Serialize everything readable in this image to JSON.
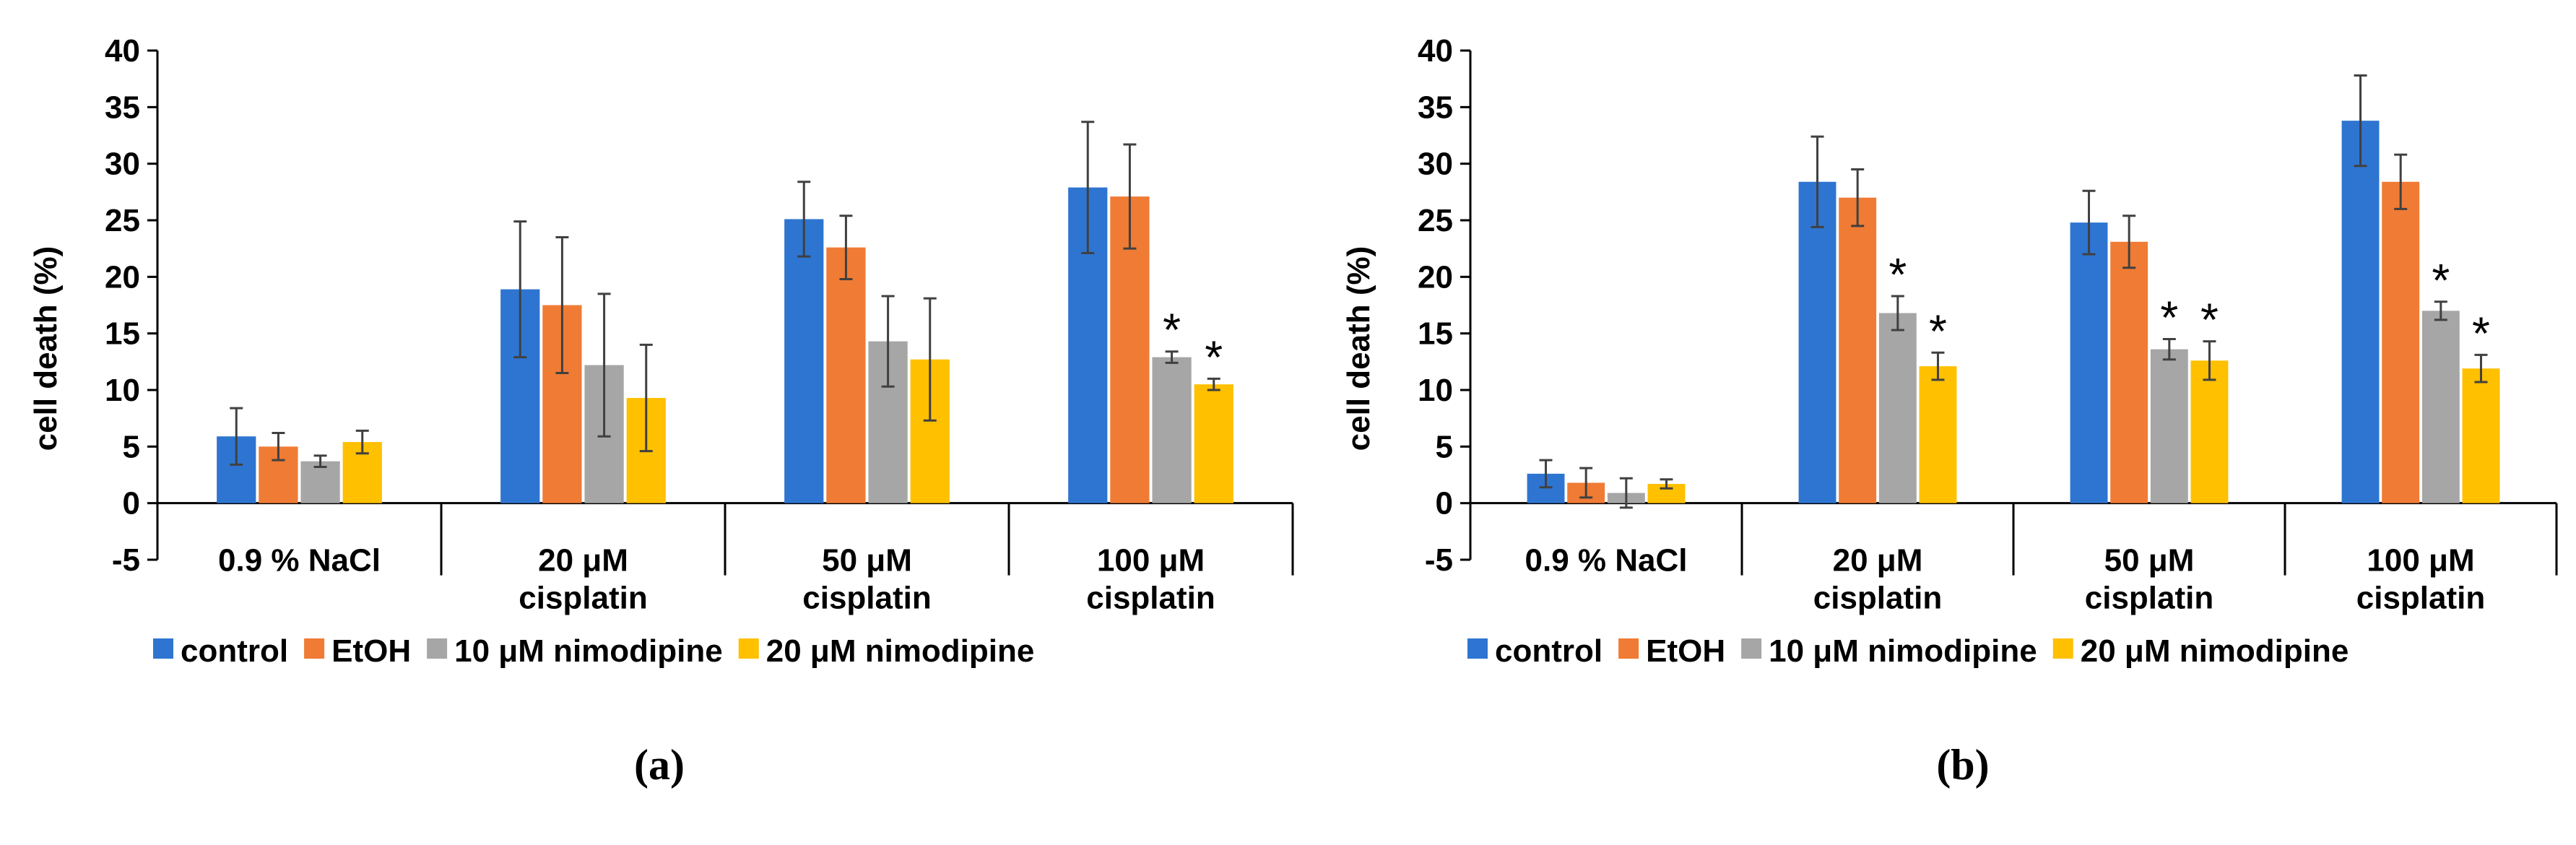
{
  "colors": {
    "control": "#2E75D1",
    "EtOH": "#F07B34",
    "nimo10": "#A6A6A6",
    "nimo20": "#FFC000"
  },
  "chart_data": [
    {
      "type": "bar",
      "panel_label": "(a)",
      "ylabel": "cell death (%)",
      "ylim": [
        -5,
        40
      ],
      "yticks": [
        "-5",
        "0",
        "5",
        "10",
        "15",
        "20",
        "25",
        "30",
        "35",
        "40"
      ],
      "categories": [
        [
          "0.9 % NaCl"
        ],
        [
          "20 μM",
          "cisplatin"
        ],
        [
          "50 μM",
          "cisplatin"
        ],
        [
          "100 μM",
          "cisplatin"
        ]
      ],
      "series": [
        {
          "name": "control",
          "values": [
            5.9,
            18.9,
            25.1,
            27.9
          ],
          "errors": [
            2.5,
            6.0,
            3.3,
            5.8
          ],
          "significant": [
            false,
            false,
            false,
            false
          ]
        },
        {
          "name": "EtOH",
          "values": [
            5.0,
            17.5,
            22.6,
            27.1
          ],
          "errors": [
            1.2,
            6.0,
            2.8,
            4.6
          ],
          "significant": [
            false,
            false,
            false,
            false
          ]
        },
        {
          "name": "10 μM nimodipine",
          "values": [
            3.7,
            12.2,
            14.3,
            12.9
          ],
          "errors": [
            0.5,
            6.3,
            4.0,
            0.5
          ],
          "significant": [
            false,
            false,
            false,
            true
          ]
        },
        {
          "name": "20 μM nimodipine",
          "values": [
            5.4,
            9.3,
            12.7,
            10.5
          ],
          "errors": [
            1.0,
            4.7,
            5.4,
            0.5
          ],
          "significant": [
            false,
            false,
            false,
            true
          ]
        }
      ],
      "legend": [
        "control",
        "EtOH",
        "10 μM nimodipine",
        "20 μM nimodipine"
      ],
      "significance_marker": "*"
    },
    {
      "type": "bar",
      "panel_label": "(b)",
      "ylabel": "cell death (%)",
      "ylim": [
        -5,
        40
      ],
      "yticks": [
        "-5",
        "0",
        "5",
        "10",
        "15",
        "20",
        "25",
        "30",
        "35",
        "40"
      ],
      "categories": [
        [
          "0.9 % NaCl"
        ],
        [
          "20 μM",
          "cisplatin"
        ],
        [
          "50 μM",
          "cisplatin"
        ],
        [
          "100 μM",
          "cisplatin"
        ]
      ],
      "series": [
        {
          "name": "control",
          "values": [
            2.6,
            28.4,
            24.8,
            33.8
          ],
          "errors": [
            1.2,
            4.0,
            2.8,
            4.0
          ],
          "significant": [
            false,
            false,
            false,
            false
          ]
        },
        {
          "name": "EtOH",
          "values": [
            1.8,
            27.0,
            23.1,
            28.4
          ],
          "errors": [
            1.3,
            2.5,
            2.3,
            2.4
          ],
          "significant": [
            false,
            false,
            false,
            false
          ]
        },
        {
          "name": "10 μM nimodipine",
          "values": [
            0.9,
            16.8,
            13.6,
            17.0
          ],
          "errors": [
            1.3,
            1.5,
            0.9,
            0.8
          ],
          "significant": [
            false,
            true,
            true,
            true
          ]
        },
        {
          "name": "20 μM nimodipine",
          "values": [
            1.7,
            12.1,
            12.6,
            11.9
          ],
          "errors": [
            0.4,
            1.2,
            1.7,
            1.2
          ],
          "significant": [
            false,
            true,
            true,
            true
          ]
        }
      ],
      "legend": [
        "control",
        "EtOH",
        "10 μM nimodipine",
        "20 μM nimodipine"
      ],
      "significance_marker": "*"
    }
  ]
}
